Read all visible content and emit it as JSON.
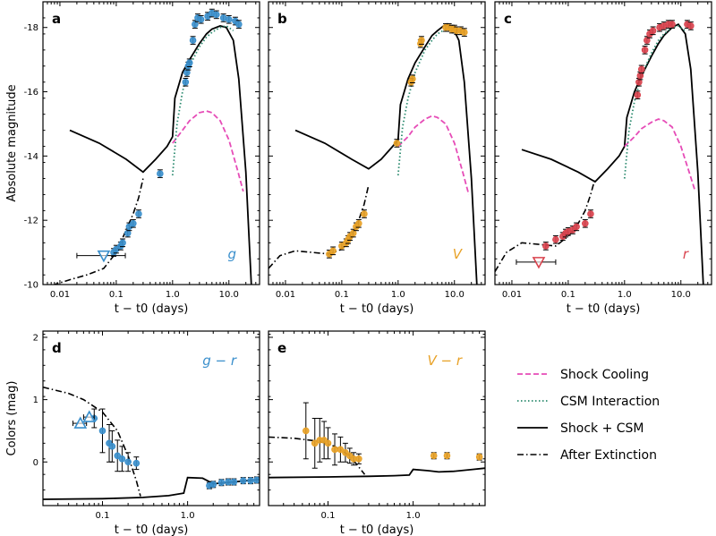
{
  "chart_data": [
    {
      "panel": "a",
      "type": "line",
      "band": "g",
      "band_color": "#3a8fcc",
      "xlabel": "t − t0 (days)",
      "ylabel": "Absolute magnitude",
      "xscale": "log",
      "xlim": [
        0.005,
        35
      ],
      "ylim": [
        -10,
        -18.8
      ],
      "y_inverted": true,
      "xticks": [
        "0.01",
        "0.1",
        "1.0",
        "10.0"
      ],
      "yticks": [
        "-10",
        "-12",
        "-14",
        "-16",
        "-18"
      ],
      "series": [
        {
          "style": "shock+csm",
          "x": [
            0.015,
            0.05,
            0.15,
            0.3,
            0.5,
            0.8,
            1.0,
            1.1,
            1.5,
            2,
            3,
            4,
            5,
            7,
            9,
            12,
            15,
            20,
            25
          ],
          "y": [
            -14.8,
            -14.4,
            -13.9,
            -13.5,
            -13.9,
            -14.3,
            -14.6,
            -15.8,
            -16.6,
            -17.0,
            -17.5,
            -17.8,
            -17.95,
            -18.05,
            -18.0,
            -17.6,
            -16.4,
            -13.5,
            -10
          ]
        },
        {
          "style": "after-extinction",
          "x": [
            0.005,
            0.008,
            0.015,
            0.03,
            0.06,
            0.1,
            0.15,
            0.2,
            0.25,
            0.3
          ],
          "y": [
            -9.7,
            -10.0,
            -10.15,
            -10.3,
            -10.5,
            -11.0,
            -11.7,
            -12.2,
            -12.7,
            -13.3
          ]
        },
        {
          "style": "shock-cooling",
          "x": [
            1.0,
            1.5,
            2,
            3,
            4,
            5,
            7,
            10,
            14,
            18
          ],
          "y": [
            -14.4,
            -14.8,
            -15.1,
            -15.35,
            -15.4,
            -15.35,
            -15.1,
            -14.5,
            -13.6,
            -12.9
          ]
        },
        {
          "style": "csm-interaction",
          "x": [
            1.0,
            1.2,
            1.5,
            2,
            3,
            4,
            5,
            7,
            9,
            12
          ],
          "y": [
            -13.4,
            -15.0,
            -16.0,
            -16.8,
            -17.4,
            -17.7,
            -17.85,
            -18.0,
            -18.05,
            -17.9
          ]
        },
        {
          "style": "obs",
          "x": [
            0.09,
            0.1,
            0.12,
            0.13,
            0.16,
            0.17,
            0.2,
            0.25,
            0.6,
            1.7,
            1.8,
            1.9,
            2.0,
            2.3,
            2.5,
            2.8,
            3.2,
            4.2,
            5.0,
            6.0,
            8.0,
            10.0,
            13.0,
            15.0
          ],
          "y": [
            -11.0,
            -11.1,
            -11.2,
            -11.3,
            -11.6,
            -11.8,
            -11.9,
            -12.2,
            -13.45,
            -16.3,
            -16.6,
            -16.8,
            -16.9,
            -17.6,
            -18.1,
            -18.3,
            -18.25,
            -18.35,
            -18.45,
            -18.4,
            -18.3,
            -18.25,
            -18.2,
            -18.1
          ]
        },
        {
          "style": "upper-limit",
          "x": [
            0.06
          ],
          "y": [
            -10.9
          ],
          "xerr": [
            0.04,
            0.085
          ]
        }
      ]
    },
    {
      "panel": "b",
      "type": "line",
      "band": "V",
      "band_color": "#e8a126",
      "xlabel": "t − t0 (days)",
      "xscale": "log",
      "xlim": [
        0.005,
        35
      ],
      "ylim": [
        -10,
        -18.8
      ],
      "y_inverted": true,
      "xticks": [
        "0.01",
        "0.1",
        "1.0",
        "10.0"
      ],
      "series": [
        {
          "style": "shock+csm",
          "x": [
            0.015,
            0.05,
            0.15,
            0.3,
            0.5,
            0.8,
            1.0,
            1.1,
            1.5,
            2,
            3,
            4,
            5,
            7,
            9,
            12,
            15,
            20,
            25
          ],
          "y": [
            -14.8,
            -14.4,
            -13.9,
            -13.6,
            -13.9,
            -14.3,
            -14.5,
            -15.6,
            -16.4,
            -16.9,
            -17.4,
            -17.75,
            -17.9,
            -18.1,
            -18.05,
            -17.6,
            -16.3,
            -13.3,
            -10
          ]
        },
        {
          "style": "after-extinction",
          "x": [
            0.005,
            0.008,
            0.015,
            0.03,
            0.06,
            0.1,
            0.15,
            0.2,
            0.25,
            0.3
          ],
          "y": [
            -10.5,
            -10.9,
            -11.05,
            -11.0,
            -10.95,
            -11.1,
            -11.5,
            -12.0,
            -12.5,
            -13.1
          ]
        },
        {
          "style": "shock-cooling",
          "x": [
            1.0,
            1.5,
            2,
            3,
            4,
            5,
            7,
            10,
            14,
            18
          ],
          "y": [
            -14.3,
            -14.6,
            -14.9,
            -15.15,
            -15.25,
            -15.2,
            -15.0,
            -14.4,
            -13.5,
            -12.8
          ]
        },
        {
          "style": "csm-interaction",
          "x": [
            1.0,
            1.2,
            1.5,
            2,
            3,
            4,
            5,
            7,
            9,
            12
          ],
          "y": [
            -13.4,
            -14.9,
            -15.8,
            -16.6,
            -17.3,
            -17.6,
            -17.8,
            -17.95,
            -18.0,
            -17.9
          ]
        },
        {
          "style": "obs",
          "x": [
            0.06,
            0.07,
            0.1,
            0.12,
            0.13,
            0.14,
            0.16,
            0.18,
            0.2,
            0.25,
            0.95,
            1.7,
            1.8,
            2.5,
            2.6,
            7.0,
            8.0,
            9.0,
            10.0,
            11.0,
            13.0,
            15.0
          ],
          "y": [
            -10.95,
            -11.05,
            -11.2,
            -11.3,
            -11.4,
            -11.5,
            -11.6,
            -11.8,
            -11.9,
            -12.2,
            -14.4,
            -16.3,
            -16.4,
            -17.5,
            -17.6,
            -18.0,
            -18.0,
            -17.95,
            -17.95,
            -17.9,
            -17.9,
            -17.85
          ]
        }
      ]
    },
    {
      "panel": "c",
      "type": "line",
      "band": "r",
      "band_color": "#d9434e",
      "xlabel": "t − t0 (days)",
      "xscale": "log",
      "xlim": [
        0.005,
        35
      ],
      "ylim": [
        -10,
        -18.8
      ],
      "y_inverted": true,
      "xticks": [
        "0.01",
        "0.1",
        "1.0",
        "10.0"
      ],
      "series": [
        {
          "style": "shock+csm",
          "x": [
            0.015,
            0.05,
            0.15,
            0.3,
            0.5,
            0.8,
            1.0,
            1.1,
            1.5,
            2,
            3,
            4,
            5,
            7,
            9,
            12,
            15,
            20,
            25
          ],
          "y": [
            -14.2,
            -13.9,
            -13.5,
            -13.2,
            -13.6,
            -14.0,
            -14.3,
            -15.2,
            -16.0,
            -16.5,
            -17.1,
            -17.5,
            -17.75,
            -18.0,
            -18.1,
            -17.8,
            -16.7,
            -13.5,
            -10
          ]
        },
        {
          "style": "after-extinction",
          "x": [
            0.005,
            0.008,
            0.015,
            0.03,
            0.06,
            0.1,
            0.15,
            0.2,
            0.25,
            0.3
          ],
          "y": [
            -10.4,
            -11.0,
            -11.3,
            -11.25,
            -11.2,
            -11.5,
            -11.9,
            -12.3,
            -12.8,
            -13.3
          ]
        },
        {
          "style": "shock-cooling",
          "x": [
            1.0,
            1.5,
            2,
            3,
            4,
            5,
            7,
            10,
            14,
            18
          ],
          "y": [
            -14.3,
            -14.6,
            -14.85,
            -15.05,
            -15.15,
            -15.1,
            -14.9,
            -14.3,
            -13.5,
            -12.9
          ]
        },
        {
          "style": "csm-interaction",
          "x": [
            1.0,
            1.2,
            1.5,
            2,
            3,
            4,
            5,
            7,
            9,
            12
          ],
          "y": [
            -13.3,
            -14.8,
            -15.7,
            -16.5,
            -17.2,
            -17.6,
            -17.8,
            -18.0,
            -18.05,
            -17.9
          ]
        },
        {
          "style": "obs",
          "x": [
            0.04,
            0.06,
            0.08,
            0.09,
            0.1,
            0.12,
            0.14,
            0.2,
            0.25,
            1.7,
            1.8,
            1.9,
            2.0,
            2.3,
            2.5,
            2.8,
            3.2,
            4.2,
            5.0,
            6.0,
            7.0,
            13.0,
            15.0
          ],
          "y": [
            -11.2,
            -11.4,
            -11.5,
            -11.6,
            -11.65,
            -11.7,
            -11.8,
            -11.9,
            -12.2,
            -15.9,
            -16.3,
            -16.5,
            -16.7,
            -17.3,
            -17.6,
            -17.8,
            -17.9,
            -18.0,
            -18.05,
            -18.1,
            -18.1,
            -18.1,
            -18.05
          ]
        },
        {
          "style": "upper-limit",
          "x": [
            0.03
          ],
          "y": [
            -10.7
          ],
          "xerr": [
            0.018,
            0.03
          ]
        }
      ]
    },
    {
      "panel": "d",
      "type": "line",
      "band": "g − r",
      "band_color": "#3a8fcc",
      "xlabel": "t − t0 (days)",
      "ylabel": "Colors (mag)",
      "xscale": "log",
      "xlim": [
        0.02,
        7
      ],
      "ylim": [
        -0.7,
        2.1
      ],
      "xticks": [
        "0.1",
        "1.0"
      ],
      "yticks": [
        "0",
        "1",
        "2"
      ],
      "series": [
        {
          "style": "shock+csm",
          "x": [
            0.02,
            0.1,
            0.3,
            0.6,
            0.9,
            1.0,
            1.5,
            2,
            3,
            5,
            7
          ],
          "y": [
            -0.6,
            -0.59,
            -0.57,
            -0.54,
            -0.5,
            -0.25,
            -0.26,
            -0.35,
            -0.33,
            -0.3,
            -0.28
          ]
        },
        {
          "style": "after-extinction",
          "x": [
            0.02,
            0.04,
            0.06,
            0.1,
            0.15,
            0.2,
            0.25,
            0.28
          ],
          "y": [
            1.2,
            1.1,
            1.0,
            0.8,
            0.5,
            0.1,
            -0.3,
            -0.55
          ]
        },
        {
          "style": "obs",
          "x": [
            0.08,
            0.1,
            0.12,
            0.13,
            0.15,
            0.17,
            0.2,
            0.25,
            1.8,
            2.0,
            2.5,
            3.0,
            3.5,
            4.5,
            5.5,
            6.5
          ],
          "y": [
            0.7,
            0.5,
            0.3,
            0.25,
            0.1,
            0.05,
            0.0,
            -0.02,
            -0.38,
            -0.36,
            -0.33,
            -0.32,
            -0.32,
            -0.3,
            -0.3,
            -0.29
          ],
          "yerr": [
            0.15,
            0.35,
            0.3,
            0.25,
            0.25,
            0.2,
            0.15,
            0.1,
            0.05,
            0.05,
            0.05,
            0.05,
            0.05,
            0.05,
            0.05,
            0.05
          ]
        },
        {
          "style": "upper-limit",
          "x": [
            0.055,
            0.07
          ],
          "y": [
            0.62,
            0.72
          ],
          "xerr": [
            0.01,
            0.01
          ]
        }
      ]
    },
    {
      "panel": "e",
      "type": "line",
      "band": "V − r",
      "band_color": "#e8a126",
      "xlabel": "t − t0 (days)",
      "xscale": "log",
      "xlim": [
        0.02,
        7
      ],
      "ylim": [
        -0.7,
        2.1
      ],
      "xticks": [
        "0.1",
        "1.0"
      ],
      "series": [
        {
          "style": "shock+csm",
          "x": [
            0.02,
            0.1,
            0.3,
            0.6,
            0.9,
            1.0,
            1.5,
            2,
            3,
            5,
            7
          ],
          "y": [
            -0.25,
            -0.24,
            -0.23,
            -0.22,
            -0.21,
            -0.12,
            -0.14,
            -0.16,
            -0.15,
            -0.12,
            -0.1
          ]
        },
        {
          "style": "after-extinction",
          "x": [
            0.02,
            0.04,
            0.08,
            0.12,
            0.18,
            0.22,
            0.27
          ],
          "y": [
            0.4,
            0.38,
            0.33,
            0.25,
            0.1,
            -0.05,
            -0.2
          ]
        },
        {
          "style": "obs",
          "x": [
            0.055,
            0.07,
            0.08,
            0.09,
            0.1,
            0.12,
            0.14,
            0.16,
            0.18,
            0.2,
            0.23,
            1.75,
            2.5,
            6.0
          ],
          "y": [
            0.5,
            0.3,
            0.35,
            0.35,
            0.3,
            0.2,
            0.2,
            0.15,
            0.1,
            0.05,
            0.05,
            0.1,
            0.1,
            0.08
          ],
          "yerr": [
            0.45,
            0.4,
            0.35,
            0.3,
            0.25,
            0.25,
            0.2,
            0.15,
            0.12,
            0.1,
            0.08,
            0.05,
            0.05,
            0.05
          ]
        }
      ]
    }
  ],
  "legend": {
    "placement": "right",
    "items": [
      {
        "label": "Shock Cooling",
        "style": "shock-cooling"
      },
      {
        "label": "CSM Interaction",
        "style": "csm-interaction"
      },
      {
        "label": "Shock + CSM",
        "style": "shock+csm"
      },
      {
        "label": "After Extinction",
        "style": "after-extinction"
      }
    ]
  },
  "colors": {
    "shock_cooling": "#e64cb7",
    "csm_interaction": "#2a8a6e",
    "model": "#000000"
  }
}
